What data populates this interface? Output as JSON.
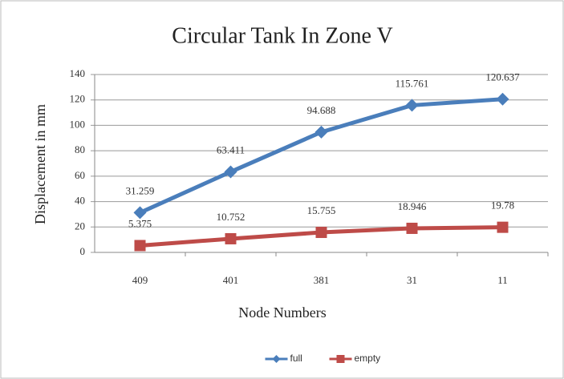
{
  "chart_data": {
    "type": "line",
    "title": "Circular Tank In Zone V",
    "x_label": "Node Numbers",
    "y_label": "Displacement in mm",
    "categories": [
      "409",
      "401",
      "381",
      "31",
      "11"
    ],
    "series": [
      {
        "name": "full",
        "color": "#4a7ebb",
        "marker": "diamond",
        "values": [
          31.259,
          63.411,
          94.688,
          115.761,
          120.637
        ]
      },
      {
        "name": "empty",
        "color": "#be4b48",
        "marker": "square",
        "values": [
          5.375,
          10.752,
          15.755,
          18.946,
          19.78
        ]
      }
    ],
    "ylim": [
      0,
      140
    ],
    "yticks": [
      0,
      20,
      40,
      60,
      80,
      100,
      120,
      140
    ],
    "grid": true,
    "legend": "bottom"
  }
}
